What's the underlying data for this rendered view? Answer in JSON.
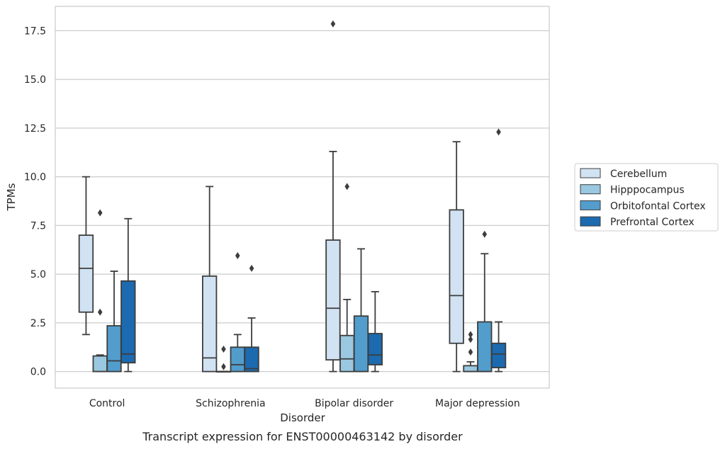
{
  "chart_data": {
    "type": "box",
    "xlabel": "Disorder",
    "ylabel": "TPMs",
    "caption": "Transcript expression for ENST00000463142 by disorder",
    "ylim": [
      -0.85,
      18.75
    ],
    "yticks": [
      0.0,
      2.5,
      5.0,
      7.5,
      10.0,
      12.5,
      15.0,
      17.5
    ],
    "ytick_labels": [
      "0.0",
      "2.5",
      "5.0",
      "7.5",
      "10.0",
      "12.5",
      "15.0",
      "17.5"
    ],
    "categories": [
      "Control",
      "Schizophrenia",
      "Bipolar disorder",
      "Major depression"
    ],
    "grid": "horizontal",
    "legend_position": "right",
    "series": [
      {
        "name": "Cerebellum",
        "color": "#d1e2f2",
        "boxes": [
          {
            "min": 1.9,
            "q1": 3.05,
            "median": 5.3,
            "q3": 7.0,
            "max": 10.0,
            "outliers": []
          },
          {
            "min": 0.0,
            "q1": 0.0,
            "median": 0.7,
            "q3": 4.9,
            "max": 9.5,
            "outliers": []
          },
          {
            "min": 0.0,
            "q1": 0.6,
            "median": 3.25,
            "q3": 6.75,
            "max": 11.3,
            "outliers": [
              17.85
            ]
          },
          {
            "min": 0.0,
            "q1": 1.45,
            "median": 3.9,
            "q3": 8.3,
            "max": 11.8,
            "outliers": []
          }
        ]
      },
      {
        "name": "Hipppocampus",
        "color": "#9ac8e0",
        "boxes": [
          {
            "min": 0.0,
            "q1": 0.0,
            "median": 0.0,
            "q3": 0.8,
            "max": 0.85,
            "outliers": [
              8.15,
              3.05
            ]
          },
          {
            "min": 0.0,
            "q1": 0.0,
            "median": 0.0,
            "q3": 0.0,
            "max": 0.0,
            "outliers": [
              1.15,
              0.25
            ]
          },
          {
            "min": 0.0,
            "q1": 0.0,
            "median": 0.65,
            "q3": 1.85,
            "max": 3.7,
            "outliers": [
              9.5
            ]
          },
          {
            "min": 0.0,
            "q1": 0.0,
            "median": 0.0,
            "q3": 0.3,
            "max": 0.5,
            "outliers": [
              1.9,
              1.65,
              1.0
            ]
          }
        ]
      },
      {
        "name": "Orbitofontal Cortex",
        "color": "#529dcc",
        "boxes": [
          {
            "min": 0.0,
            "q1": 0.0,
            "median": 0.55,
            "q3": 2.35,
            "max": 5.15,
            "outliers": []
          },
          {
            "min": 0.0,
            "q1": 0.0,
            "median": 0.35,
            "q3": 1.25,
            "max": 1.9,
            "outliers": [
              5.95
            ]
          },
          {
            "min": 0.0,
            "q1": 0.0,
            "median": 0.0,
            "q3": 2.85,
            "max": 6.3,
            "outliers": []
          },
          {
            "min": 0.0,
            "q1": 0.0,
            "median": 0.0,
            "q3": 2.55,
            "max": 6.05,
            "outliers": [
              7.05
            ]
          }
        ]
      },
      {
        "name": "Prefrontal Cortex",
        "color": "#1c6aaf",
        "boxes": [
          {
            "min": 0.0,
            "q1": 0.45,
            "median": 0.9,
            "q3": 4.65,
            "max": 7.85,
            "outliers": []
          },
          {
            "min": 0.0,
            "q1": 0.0,
            "median": 0.15,
            "q3": 1.25,
            "max": 2.75,
            "outliers": [
              5.3
            ]
          },
          {
            "min": 0.0,
            "q1": 0.35,
            "median": 0.85,
            "q3": 1.95,
            "max": 4.1,
            "outliers": []
          },
          {
            "min": 0.0,
            "q1": 0.2,
            "median": 0.9,
            "q3": 1.45,
            "max": 2.55,
            "outliers": [
              12.3
            ]
          }
        ]
      }
    ]
  }
}
